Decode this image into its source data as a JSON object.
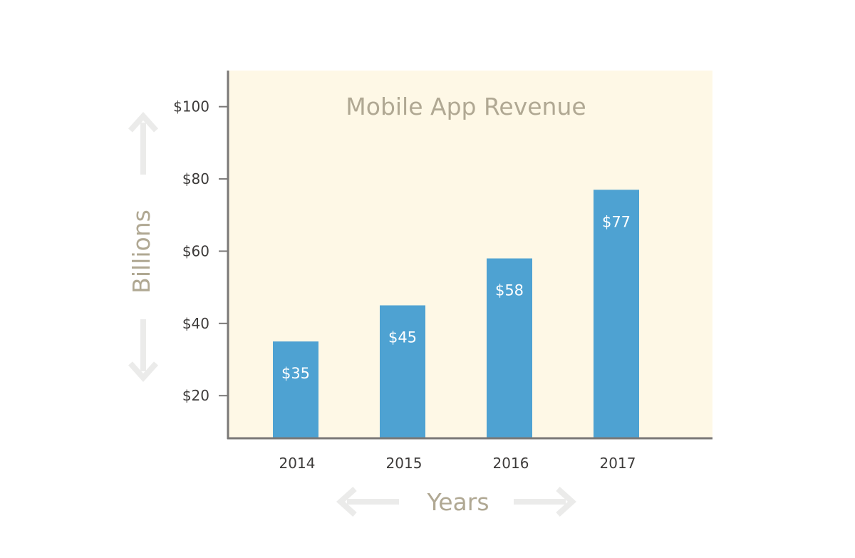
{
  "chart_data": {
    "type": "bar",
    "title": "Mobile App Revenue",
    "xlabel": "Years",
    "ylabel": "Billions",
    "categories": [
      "2014",
      "2015",
      "2016",
      "2017"
    ],
    "values": [
      35,
      45,
      58,
      77
    ],
    "value_labels": [
      "$35",
      "$45",
      "$58",
      "$77"
    ],
    "y_ticks": [
      20,
      40,
      60,
      80,
      100
    ],
    "y_tick_labels": [
      "$20",
      "$40",
      "$60",
      "$80",
      "$100"
    ],
    "ylim": [
      8.4,
      110
    ],
    "grid": false,
    "colors": {
      "bar": "#4ea2d2",
      "plot_background": "#fef8e6",
      "axis": "#7a7877",
      "title": "#b0a893",
      "arrow": "#ebebea"
    }
  }
}
